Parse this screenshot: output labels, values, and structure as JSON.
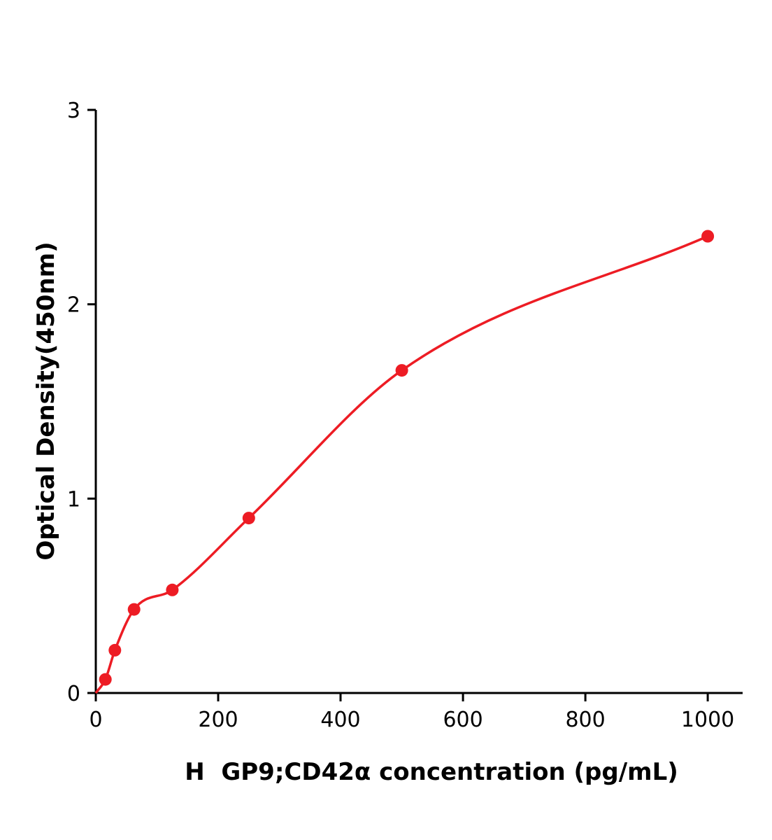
{
  "chart_data": {
    "type": "scatter",
    "title": "",
    "xlabel": "H  GP9;CD42α concentration (pg/mL)",
    "ylabel": "Optical Density(450nm)",
    "x": [
      15.6,
      31.25,
      62.5,
      125,
      250,
      500,
      1000
    ],
    "y": [
      0.07,
      0.22,
      0.43,
      0.53,
      0.9,
      1.66,
      2.35
    ],
    "curve_start": [
      0,
      0
    ],
    "xticks": [
      0,
      200,
      400,
      600,
      800,
      1000
    ],
    "yticks": [
      0,
      1,
      2,
      3
    ],
    "xlim": [
      0,
      1057
    ],
    "ylim": [
      0,
      3
    ],
    "grid": false,
    "legend_position": "none",
    "point_color": "#ed1c24",
    "line_color": "#ed1c24",
    "axis_color": "#000000"
  }
}
